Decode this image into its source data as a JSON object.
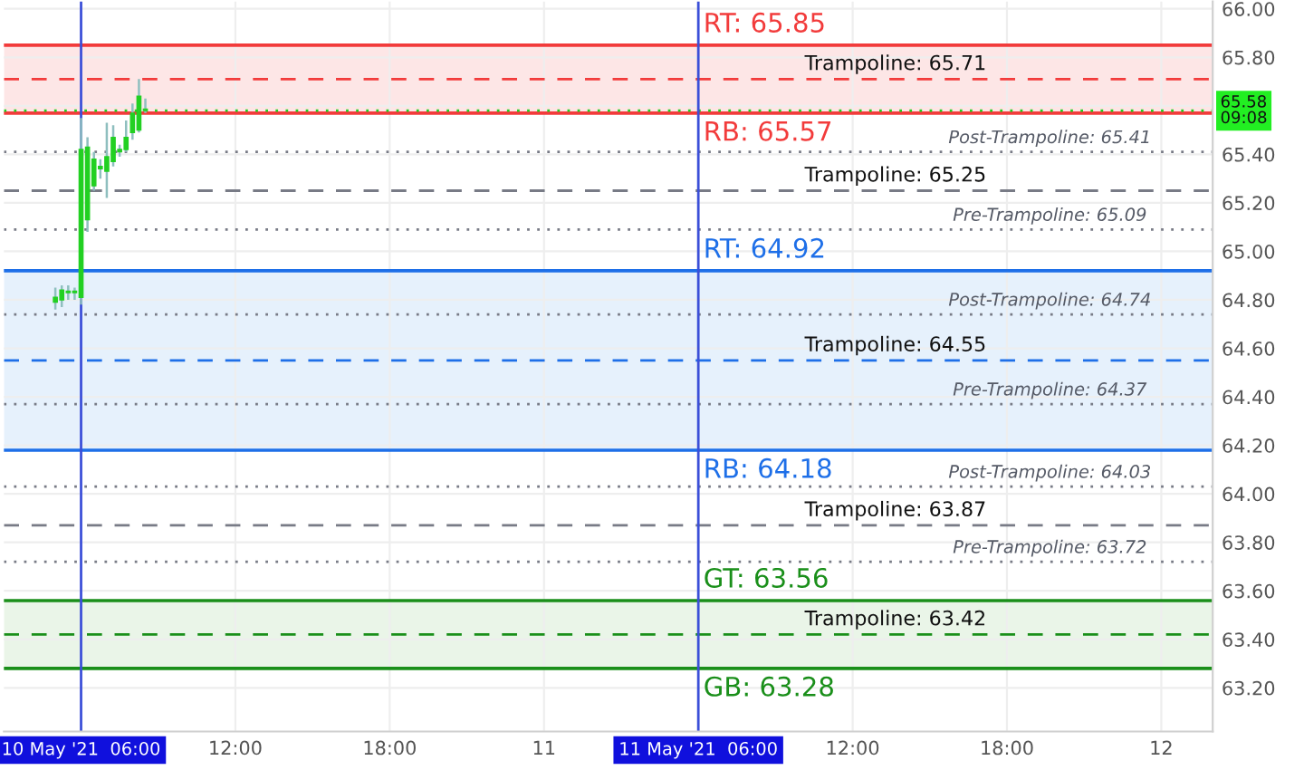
{
  "chart_data": {
    "type": "candlestick",
    "color": "#22d022",
    "x": [
      "2021-05-10T05:00",
      "2021-05-10T05:15",
      "2021-05-10T05:30",
      "2021-05-10T05:45",
      "2021-05-10T06:00",
      "2021-05-10T06:15",
      "2021-05-10T06:30",
      "2021-05-10T06:45",
      "2021-05-10T07:00",
      "2021-05-10T07:15",
      "2021-05-10T07:30",
      "2021-05-10T07:45",
      "2021-05-10T08:00",
      "2021-05-10T08:15",
      "2021-05-10T08:30"
    ],
    "ohlc": [
      [
        64.79,
        64.85,
        64.76,
        64.81
      ],
      [
        64.8,
        64.86,
        64.77,
        64.84
      ],
      [
        64.83,
        64.86,
        64.8,
        64.83
      ],
      [
        64.83,
        64.85,
        64.8,
        64.83
      ],
      [
        64.81,
        65.55,
        64.78,
        65.42
      ],
      [
        65.13,
        65.47,
        65.08,
        65.43
      ],
      [
        65.27,
        65.41,
        65.25,
        65.38
      ],
      [
        65.34,
        65.38,
        65.3,
        65.35
      ],
      [
        65.33,
        65.53,
        65.22,
        65.39
      ],
      [
        65.37,
        65.52,
        65.35,
        65.47
      ],
      [
        65.41,
        65.44,
        65.39,
        65.42
      ],
      [
        65.42,
        65.54,
        65.41,
        65.47
      ],
      [
        65.49,
        65.61,
        65.46,
        65.57
      ],
      [
        65.5,
        65.71,
        65.49,
        65.64
      ],
      [
        65.58,
        65.63,
        65.57,
        65.58
      ]
    ],
    "xlim": [
      "2021-05-10T03:00",
      "2021-05-12T02:00"
    ],
    "xticks": [
      {
        "value": "2021-05-10T12:00",
        "label": "12:00"
      },
      {
        "value": "2021-05-10T18:00",
        "label": "18:00"
      },
      {
        "value": "2021-05-11T00:00",
        "label": "11"
      },
      {
        "value": "2021-05-11T12:00",
        "label": "12:00"
      },
      {
        "value": "2021-05-11T18:00",
        "label": "18:00"
      },
      {
        "value": "2021-05-12T00:00",
        "label": "12"
      }
    ],
    "ylim": [
      63.02,
      66.03
    ],
    "yticks": [
      {
        "value": 63.2,
        "label": "63.20"
      },
      {
        "value": 63.4,
        "label": "63.40"
      },
      {
        "value": 63.6,
        "label": "63.60"
      },
      {
        "value": 63.8,
        "label": "63.80"
      },
      {
        "value": 64.0,
        "label": "64.00"
      },
      {
        "value": 64.2,
        "label": "64.20"
      },
      {
        "value": 64.4,
        "label": "64.40"
      },
      {
        "value": 64.6,
        "label": "64.60"
      },
      {
        "value": 64.8,
        "label": "64.80"
      },
      {
        "value": 65.0,
        "label": "65.00"
      },
      {
        "value": 65.2,
        "label": "65.20"
      },
      {
        "value": 65.4,
        "label": "65.40"
      },
      {
        "value": 65.6,
        "label": null
      },
      {
        "value": 65.8,
        "label": "65.80"
      },
      {
        "value": 66.0,
        "label": "66.00"
      }
    ],
    "grid": true,
    "bands": [
      {
        "axis": "y",
        "from": 65.57,
        "to": 65.85,
        "color": "#fde6e6"
      },
      {
        "axis": "y",
        "from": 64.18,
        "to": 64.92,
        "color": "#e6f1fc"
      },
      {
        "axis": "y",
        "from": 63.28,
        "to": 63.56,
        "color": "#eaf5e8"
      }
    ],
    "ref_lines": [
      {
        "axis": "y",
        "value": 65.85,
        "label": "RT: 65.85",
        "color": "#f23b3b",
        "line_style": "solid"
      },
      {
        "axis": "y",
        "value": 65.71,
        "label": "Trampoline: 65.71",
        "color": "#f23b3b",
        "line_style": "dashed"
      },
      {
        "axis": "y",
        "value": 65.57,
        "label": "RB: 65.57",
        "color": "#f23b3b",
        "line_style": "solid"
      },
      {
        "axis": "y",
        "value": 65.58,
        "label": "65.58\n09:08",
        "color": "#22d022",
        "line_style": "dotted"
      },
      {
        "axis": "y",
        "value": 65.41,
        "label": "Post-Trampoline: 65.41",
        "color": "#787b86",
        "line_style": "dotted"
      },
      {
        "axis": "y",
        "value": 65.25,
        "label": "Trampoline: 65.25",
        "color": "#787b86",
        "line_style": "dashed"
      },
      {
        "axis": "y",
        "value": 65.09,
        "label": "Pre-Trampoline: 65.09",
        "color": "#787b86",
        "line_style": "dotted"
      },
      {
        "axis": "y",
        "value": 64.92,
        "label": "RT: 64.92",
        "color": "#1e6fe8",
        "line_style": "solid"
      },
      {
        "axis": "y",
        "value": 64.74,
        "label": "Post-Trampoline: 64.74",
        "color": "#787b86",
        "line_style": "dotted"
      },
      {
        "axis": "y",
        "value": 64.55,
        "label": "Trampoline: 64.55",
        "color": "#1e6fe8",
        "line_style": "dashed"
      },
      {
        "axis": "y",
        "value": 64.37,
        "label": "Pre-Trampoline: 64.37",
        "color": "#787b86",
        "line_style": "dotted"
      },
      {
        "axis": "y",
        "value": 64.18,
        "label": "RB: 64.18",
        "color": "#1e6fe8",
        "line_style": "solid"
      },
      {
        "axis": "y",
        "value": 64.03,
        "label": "Post-Trampoline: 64.03",
        "color": "#787b86",
        "line_style": "dotted"
      },
      {
        "axis": "y",
        "value": 63.87,
        "label": "Trampoline: 63.87",
        "color": "#787b86",
        "line_style": "dashed"
      },
      {
        "axis": "y",
        "value": 63.72,
        "label": "Pre-Trampoline: 63.72",
        "color": "#787b86",
        "line_style": "dotted"
      },
      {
        "axis": "y",
        "value": 63.56,
        "label": "GT: 63.56",
        "color": "#1a8f1a",
        "line_style": "solid"
      },
      {
        "axis": "y",
        "value": 63.42,
        "label": "Trampoline: 63.42",
        "color": "#1a8f1a",
        "line_style": "dashed"
      },
      {
        "axis": "y",
        "value": 63.28,
        "label": "GB: 63.28",
        "color": "#1a8f1a",
        "line_style": "solid"
      },
      {
        "axis": "x",
        "value": "2021-05-10T06:00",
        "label": "10 May '21  06:00",
        "color": "#3b4fd8",
        "line_style": "solid"
      },
      {
        "axis": "x",
        "value": "2021-05-11T06:00",
        "label": "11 May '21  06:00",
        "color": "#3b4fd8",
        "line_style": "solid"
      }
    ]
  }
}
